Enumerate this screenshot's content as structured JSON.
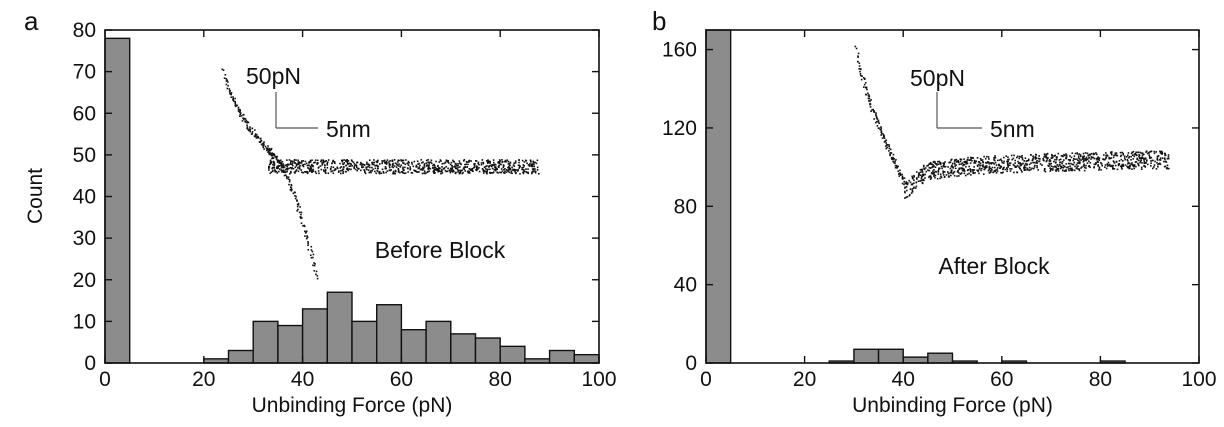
{
  "colors": {
    "bar_fill": "#8c8c8c",
    "bar_stroke": "#111111",
    "axis": "#111111",
    "trace": "#111111"
  },
  "chart_data": [
    {
      "panel_label": "a",
      "type": "bar",
      "xlabel": "Unbinding Force (pN)",
      "ylabel": "Count",
      "xlim": [
        0,
        100
      ],
      "ylim": [
        0,
        80
      ],
      "xticks": [
        "0",
        "20",
        "40",
        "60",
        "80",
        "100"
      ],
      "yticks": [
        "0",
        "10",
        "20",
        "30",
        "40",
        "50",
        "60",
        "70",
        "80"
      ],
      "bin_width": 5,
      "bins": [
        {
          "x0": 0,
          "value": 78
        },
        {
          "x0": 20,
          "value": 1
        },
        {
          "x0": 25,
          "value": 3
        },
        {
          "x0": 30,
          "value": 10
        },
        {
          "x0": 35,
          "value": 9
        },
        {
          "x0": 40,
          "value": 13
        },
        {
          "x0": 45,
          "value": 17
        },
        {
          "x0": 50,
          "value": 10
        },
        {
          "x0": 55,
          "value": 14
        },
        {
          "x0": 60,
          "value": 8
        },
        {
          "x0": 65,
          "value": 10
        },
        {
          "x0": 70,
          "value": 7
        },
        {
          "x0": 75,
          "value": 6
        },
        {
          "x0": 80,
          "value": 4
        },
        {
          "x0": 85,
          "value": 1
        },
        {
          "x0": 90,
          "value": 3
        },
        {
          "x0": 95,
          "value": 2
        }
      ],
      "annotation": "Before Block",
      "inset": {
        "force_scale": "50pN",
        "distance_scale": "5nm"
      }
    },
    {
      "panel_label": "b",
      "type": "bar",
      "xlabel": "Unbinding Force (pN)",
      "ylabel": "",
      "xlim": [
        0,
        100
      ],
      "ylim": [
        0,
        170
      ],
      "xticks": [
        "0",
        "20",
        "40",
        "60",
        "80",
        "100"
      ],
      "yticks": [
        "0",
        "40",
        "80",
        "120",
        "160"
      ],
      "bin_width": 5,
      "bins": [
        {
          "x0": 0,
          "value": 170
        },
        {
          "x0": 25,
          "value": 1
        },
        {
          "x0": 30,
          "value": 7
        },
        {
          "x0": 35,
          "value": 7
        },
        {
          "x0": 40,
          "value": 3
        },
        {
          "x0": 45,
          "value": 5
        },
        {
          "x0": 50,
          "value": 1
        },
        {
          "x0": 60,
          "value": 1
        },
        {
          "x0": 80,
          "value": 1
        }
      ],
      "annotation": "After Block",
      "inset": {
        "force_scale": "50pN",
        "distance_scale": "5nm"
      }
    }
  ]
}
